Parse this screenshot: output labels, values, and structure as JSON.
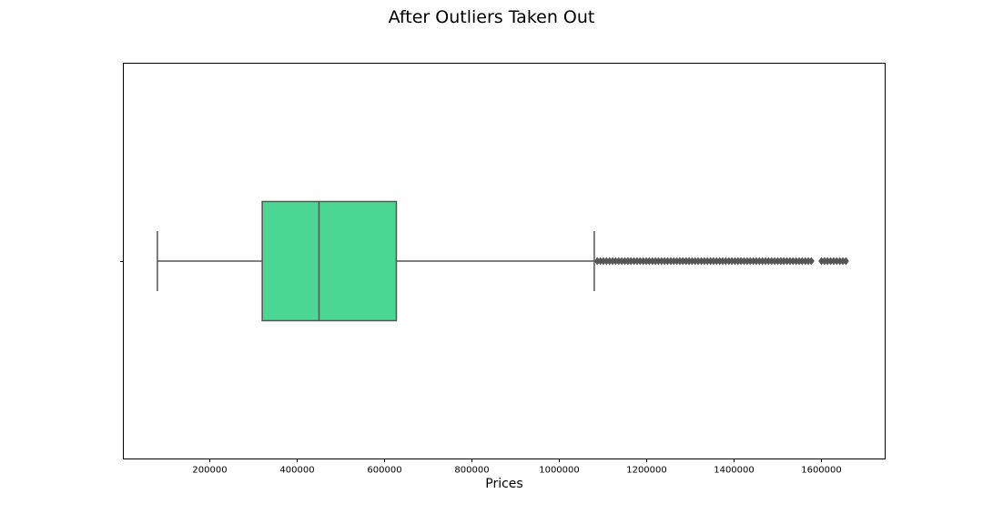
{
  "chart_data": {
    "type": "boxplot",
    "orientation": "horizontal",
    "title": "After Outliers Taken Out",
    "xlabel": "Prices",
    "ylabel": "",
    "xlim": [
      0,
      1750000
    ],
    "xticks": [
      200000,
      400000,
      600000,
      800000,
      1000000,
      1200000,
      1400000,
      1600000
    ],
    "xtick_labels": [
      "200000",
      "400000",
      "600000",
      "800000",
      "1000000",
      "1200000",
      "1400000",
      "1600000"
    ],
    "grid": false,
    "box": {
      "whisker_low": 80000,
      "q1": 320000,
      "median": 450000,
      "q3": 627000,
      "whisker_high": 1080000,
      "fill_color": "#4cd693",
      "line_color": "#555555"
    },
    "outlier_ranges": [
      [
        1087000,
        1582000
      ],
      [
        1600000,
        1660000
      ]
    ],
    "outlier_color": "#555555"
  }
}
